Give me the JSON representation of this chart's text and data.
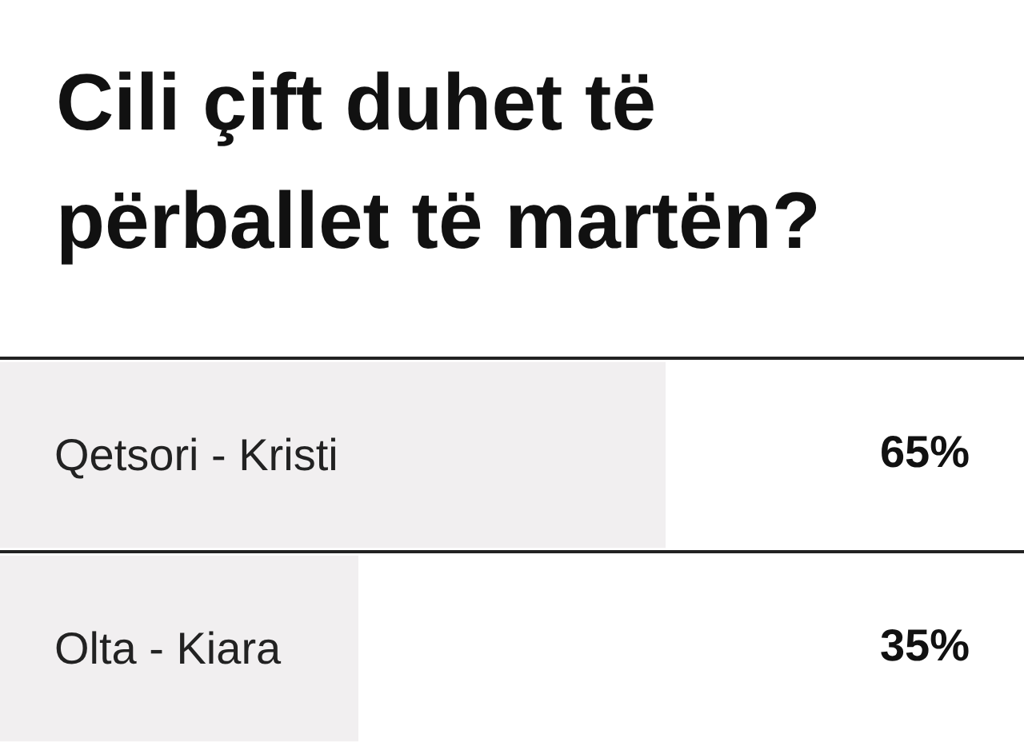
{
  "chart_data": {
    "type": "bar",
    "orientation": "horizontal",
    "title": "Cili çift duhet të përballet të martën?",
    "categories": [
      "Qetsori - Kristi",
      "Olta - Kiara"
    ],
    "values": [
      65,
      35
    ],
    "color": "#f1eff0",
    "value_labels": [
      "65%",
      "35%"
    ],
    "xlim": [
      0,
      100
    ],
    "grid": "y"
  }
}
